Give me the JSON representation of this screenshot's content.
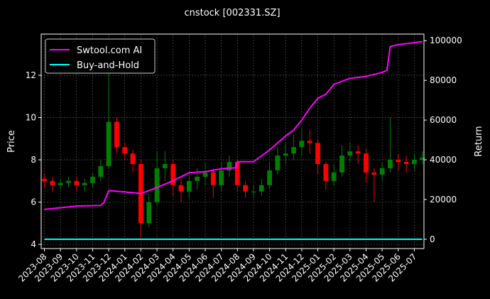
{
  "chart_data": {
    "type": "candlestick",
    "title": "cnstock [002331.SZ]",
    "ylabel": "Price",
    "y2label": "Return",
    "up_color": "#008000",
    "down_color": "#ff0000",
    "grid": true,
    "x": [
      0,
      0.5,
      1,
      1.5,
      2,
      2.5,
      3,
      3.5,
      4,
      4.5,
      5,
      5.5,
      6,
      6.5,
      7,
      7.5,
      8,
      8.5,
      9,
      9.5,
      10,
      10.5,
      11,
      11.5,
      12,
      12.5,
      13,
      13.5,
      14,
      14.5,
      15,
      15.5,
      16,
      16.5,
      17,
      17.5,
      18,
      18.5,
      19,
      19.5,
      20,
      20.5,
      21,
      21.5,
      22,
      22.5,
      23,
      23.5
    ],
    "open": [
      7.1,
      7.0,
      6.8,
      6.9,
      7.0,
      6.8,
      6.9,
      7.2,
      7.7,
      9.8,
      8.6,
      8.3,
      7.8,
      5.0,
      6.0,
      7.6,
      7.8,
      6.8,
      6.5,
      7.0,
      7.2,
      7.4,
      6.8,
      7.5,
      7.9,
      6.8,
      6.5,
      6.5,
      6.8,
      7.5,
      8.2,
      8.3,
      8.6,
      8.9,
      8.8,
      7.8,
      7.0,
      7.4,
      8.2,
      8.4,
      8.3,
      7.4,
      7.3,
      7.6,
      8.0,
      7.9,
      7.8,
      8.0
    ],
    "high": [
      7.3,
      7.2,
      7.1,
      7.2,
      7.2,
      7.1,
      7.4,
      8.0,
      12.4,
      10.0,
      8.8,
      8.5,
      8.0,
      6.4,
      8.4,
      8.4,
      8.0,
      7.1,
      7.3,
      7.6,
      7.9,
      7.6,
      7.9,
      8.2,
      8.0,
      7.0,
      6.8,
      7.1,
      7.9,
      8.6,
      8.8,
      9.2,
      9.5,
      9.4,
      9.0,
      7.9,
      7.8,
      8.7,
      8.8,
      8.7,
      8.5,
      7.6,
      7.9,
      10.0,
      8.3,
      8.2,
      8.3,
      8.4
    ],
    "low": [
      6.7,
      6.5,
      6.6,
      6.7,
      6.5,
      6.5,
      6.7,
      7.0,
      7.6,
      8.3,
      8.0,
      7.4,
      4.3,
      4.8,
      5.8,
      7.0,
      6.3,
      6.0,
      6.2,
      6.6,
      6.8,
      6.2,
      6.5,
      7.2,
      6.5,
      6.2,
      6.2,
      6.3,
      6.6,
      7.3,
      7.8,
      8.0,
      8.2,
      8.3,
      7.3,
      6.6,
      6.8,
      7.2,
      7.9,
      7.8,
      6.9,
      6.0,
      7.0,
      7.4,
      7.5,
      7.4,
      7.5,
      7.8
    ],
    "close": [
      7.0,
      6.8,
      6.9,
      7.0,
      6.8,
      6.9,
      7.2,
      7.7,
      9.8,
      8.6,
      8.3,
      7.8,
      5.0,
      6.0,
      7.6,
      7.8,
      6.8,
      6.5,
      7.0,
      7.2,
      7.4,
      6.8,
      7.5,
      7.9,
      6.8,
      6.5,
      6.5,
      6.8,
      7.5,
      8.2,
      8.3,
      8.6,
      8.9,
      8.8,
      7.8,
      7.0,
      7.4,
      8.2,
      8.4,
      8.3,
      7.4,
      7.3,
      7.6,
      8.0,
      7.9,
      7.8,
      8.0,
      8.1
    ],
    "series": [
      {
        "name": "Swtool.com AI",
        "color": "#ff00ff",
        "axis": "y2",
        "x": [
          0,
          2,
          3.5,
          3.7,
          4,
          5,
          6,
          6.5,
          7,
          8,
          9,
          10,
          11,
          11.9,
          12,
          13,
          14,
          15,
          15.5,
          16,
          16.5,
          17,
          17.5,
          18,
          19,
          20,
          21,
          21.3,
          21.5,
          22,
          23,
          23.5
        ],
        "values": [
          15000,
          16700,
          17000,
          18500,
          24500,
          23800,
          23000,
          24500,
          26000,
          29500,
          33500,
          34000,
          35500,
          36000,
          39000,
          39000,
          45000,
          52000,
          55000,
          60000,
          66000,
          71000,
          73000,
          78000,
          81000,
          82000,
          84000,
          85000,
          97000,
          98000,
          99000,
          99500
        ]
      },
      {
        "name": "Buy-and-Hold",
        "color": "#00ffff",
        "axis": "y2",
        "x": [
          0,
          23.5
        ],
        "values": [
          0,
          0
        ]
      }
    ],
    "xlim": [
      -0.2,
      23.6
    ],
    "xticks": [
      {
        "value": 0,
        "label": "2023-08"
      },
      {
        "value": 1,
        "label": "2023-09"
      },
      {
        "value": 2,
        "label": "2023-10"
      },
      {
        "value": 3,
        "label": "2023-11"
      },
      {
        "value": 4,
        "label": "2023-12"
      },
      {
        "value": 5,
        "label": "2024-01"
      },
      {
        "value": 6,
        "label": "2024-02"
      },
      {
        "value": 7,
        "label": "2024-03"
      },
      {
        "value": 8,
        "label": "2024-04"
      },
      {
        "value": 9,
        "label": "2024-05"
      },
      {
        "value": 10,
        "label": "2024-06"
      },
      {
        "value": 11,
        "label": "2024-07"
      },
      {
        "value": 12,
        "label": "2024-08"
      },
      {
        "value": 13,
        "label": "2024-09"
      },
      {
        "value": 14,
        "label": "2024-10"
      },
      {
        "value": 15,
        "label": "2024-11"
      },
      {
        "value": 16,
        "label": "2024-12"
      },
      {
        "value": 17,
        "label": "2025-01"
      },
      {
        "value": 18,
        "label": "2025-02"
      },
      {
        "value": 19,
        "label": "2025-03"
      },
      {
        "value": 20,
        "label": "2025-04"
      },
      {
        "value": 21,
        "label": "2025-05"
      },
      {
        "value": 22,
        "label": "2025-06"
      },
      {
        "value": 23,
        "label": "2025-07"
      }
    ],
    "ylim": [
      3.8,
      13.95
    ],
    "yticks": [
      4,
      6,
      8,
      10,
      12
    ],
    "y2lim": [
      -4700,
      103300
    ],
    "y2ticks": [
      0,
      20000,
      40000,
      60000,
      80000,
      100000
    ],
    "legend": "upper left"
  }
}
